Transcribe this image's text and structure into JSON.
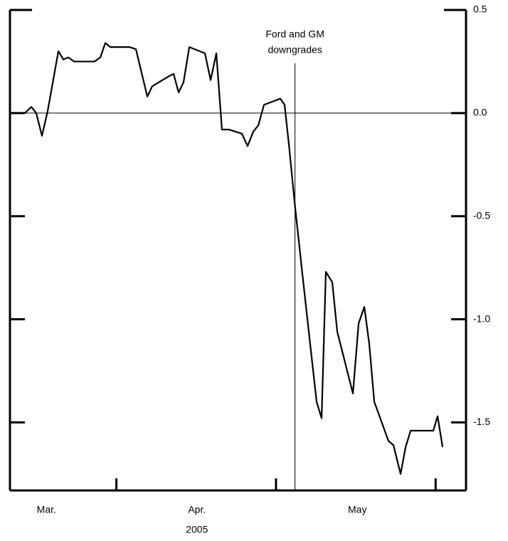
{
  "chart_data": {
    "type": "line",
    "x": [
      1.97,
      2.81,
      3.46,
      4.21,
      4.96,
      6.37,
      7.02,
      7.68,
      8.43,
      11.14,
      11.89,
      12.54,
      13.2,
      13.67,
      15.73,
      16.57,
      18.07,
      18.72,
      20.97,
      21.53,
      22.19,
      22.84,
      23.59,
      25.65,
      26.4,
      27.15,
      27.89,
      28.83,
      30.52,
      31.26,
      32.01,
      32.67,
      33.42,
      35.57,
      36.13,
      36.69,
      37.44,
      38.47,
      40.34,
      41,
      41.56,
      42.4,
      43.06,
      45.12,
      45.87,
      46.62,
      47.27,
      47.93,
      49.8,
      50.45,
      51.39,
      52.05,
      52.71,
      55.7,
      56.26,
      56.92
    ],
    "values": [
      0,
      0.03,
      0,
      -0.11,
      0.01,
      0.3,
      0.26,
      0.27,
      0.25,
      0.25,
      0.27,
      0.34,
      0.32,
      0.32,
      0.32,
      0.31,
      0.08,
      0.13,
      0.18,
      0.19,
      0.1,
      0.15,
      0.32,
      0.29,
      0.16,
      0.29,
      -0.08,
      -0.08,
      -0.1,
      -0.16,
      -0.09,
      -0.06,
      0.04,
      0.07,
      0.04,
      -0.15,
      -0.43,
      -0.78,
      -1.4,
      -1.48,
      -0.77,
      -0.82,
      -1.06,
      -1.36,
      -1.02,
      -0.94,
      -1.12,
      -1.4,
      -1.59,
      -1.61,
      -1.75,
      -1.62,
      -1.54,
      -1.54,
      -1.47,
      -1.62
    ],
    "color": "#000000",
    "xlim": [
      0,
      60
    ],
    "xticks": [
      14,
      35,
      56
    ],
    "x_labels": [
      {
        "value": 4.8,
        "label": "Mar."
      },
      {
        "value": 24.6,
        "label": "Apr."
      },
      {
        "value": 45.7,
        "label": "May"
      }
    ],
    "x_label": "2005",
    "ylim": [
      -1.83,
      0.5
    ],
    "yticks": [
      0.5,
      {
        "value": 0,
        "label": "0.0"
      },
      -0.5,
      {
        "value": -1,
        "label": "-1.0"
      },
      -1.5
    ],
    "reference_line": 0,
    "annotation": {
      "x": 37.5,
      "text": [
        "Ford and GM",
        "downgrades"
      ]
    }
  }
}
